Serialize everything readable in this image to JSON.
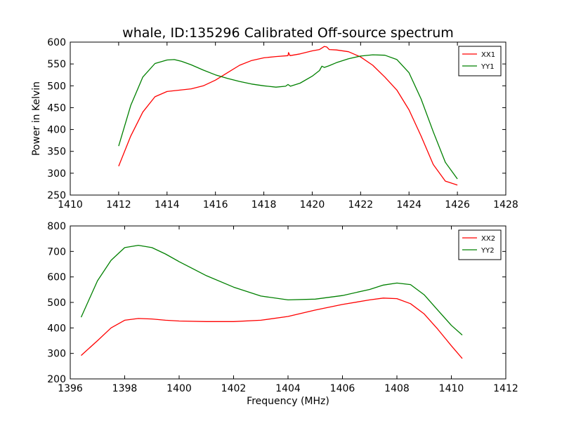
{
  "title": "whale, ID:135296 Calibrated Off-source spectrum",
  "colors": {
    "xx": "#ff0000",
    "yy": "#008000"
  },
  "chart_data": [
    {
      "type": "line",
      "title": "whale, ID:135296 Calibrated Off-source spectrum",
      "xlabel": "",
      "ylabel": "Power in Kelvin",
      "xlim": [
        1410,
        1428
      ],
      "ylim": [
        250,
        600
      ],
      "xticks": [
        1410,
        1412,
        1414,
        1416,
        1418,
        1420,
        1422,
        1424,
        1426,
        1428
      ],
      "yticks": [
        250,
        300,
        350,
        400,
        450,
        500,
        550,
        600
      ],
      "grid": false,
      "legend": "top-right",
      "series": [
        {
          "name": "XX1",
          "color": "#ff0000",
          "x": [
            1412.0,
            1412.5,
            1413.0,
            1413.5,
            1414.0,
            1414.5,
            1415.0,
            1415.5,
            1416.0,
            1416.5,
            1417.0,
            1417.5,
            1418.0,
            1418.5,
            1419.0,
            1419.02,
            1419.08,
            1419.5,
            1420.0,
            1420.3,
            1420.5,
            1420.6,
            1420.7,
            1421.0,
            1421.5,
            1422.0,
            1422.5,
            1423.0,
            1423.5,
            1424.0,
            1424.5,
            1425.0,
            1425.5,
            1426.0
          ],
          "y": [
            316,
            385,
            440,
            475,
            487,
            490,
            493,
            500,
            513,
            530,
            547,
            558,
            564,
            567,
            569,
            576,
            569,
            573,
            580,
            583,
            590,
            589,
            583,
            582,
            578,
            566,
            547,
            520,
            490,
            445,
            385,
            320,
            282,
            273
          ]
        },
        {
          "name": "YY1",
          "color": "#008000",
          "x": [
            1412.0,
            1412.5,
            1413.0,
            1413.5,
            1414.0,
            1414.3,
            1414.6,
            1415.0,
            1415.5,
            1416.0,
            1416.5,
            1417.0,
            1417.5,
            1418.0,
            1418.5,
            1418.9,
            1419.0,
            1419.1,
            1419.5,
            1420.0,
            1420.3,
            1420.4,
            1420.5,
            1420.7,
            1421.0,
            1421.5,
            1422.0,
            1422.5,
            1423.0,
            1423.5,
            1424.0,
            1424.5,
            1425.0,
            1425.5,
            1426.0
          ],
          "y": [
            362,
            455,
            520,
            551,
            559,
            560,
            556,
            548,
            536,
            525,
            517,
            510,
            504,
            500,
            497,
            499,
            503,
            499,
            506,
            522,
            535,
            545,
            542,
            546,
            553,
            562,
            568,
            571,
            570,
            560,
            530,
            470,
            395,
            325,
            287
          ]
        }
      ]
    },
    {
      "type": "line",
      "title": "",
      "xlabel": "Frequency (MHz)",
      "ylabel": "",
      "xlim": [
        1396,
        1412
      ],
      "ylim": [
        200,
        800
      ],
      "xticks": [
        1396,
        1398,
        1400,
        1402,
        1404,
        1406,
        1408,
        1410,
        1412
      ],
      "yticks": [
        200,
        300,
        400,
        500,
        600,
        700,
        800
      ],
      "grid": false,
      "legend": "top-right",
      "series": [
        {
          "name": "XX2",
          "color": "#ff0000",
          "x": [
            1396.4,
            1397.0,
            1397.5,
            1398.0,
            1398.5,
            1399.0,
            1399.5,
            1400.0,
            1401.0,
            1402.0,
            1403.0,
            1404.0,
            1405.0,
            1406.0,
            1407.0,
            1407.5,
            1408.0,
            1408.5,
            1409.0,
            1409.5,
            1410.0,
            1410.4
          ],
          "y": [
            292,
            350,
            400,
            430,
            437,
            435,
            430,
            427,
            425,
            425,
            430,
            445,
            470,
            492,
            510,
            517,
            515,
            495,
            455,
            395,
            330,
            280
          ]
        },
        {
          "name": "YY2",
          "color": "#008000",
          "x": [
            1396.4,
            1397.0,
            1397.5,
            1398.0,
            1398.5,
            1399.0,
            1399.5,
            1400.0,
            1401.0,
            1402.0,
            1403.0,
            1404.0,
            1405.0,
            1406.0,
            1407.0,
            1407.5,
            1408.0,
            1408.5,
            1409.0,
            1409.5,
            1410.0,
            1410.4
          ],
          "y": [
            442,
            585,
            665,
            715,
            724,
            715,
            690,
            660,
            605,
            560,
            525,
            510,
            513,
            527,
            551,
            568,
            576,
            570,
            530,
            470,
            410,
            372
          ]
        }
      ]
    }
  ]
}
